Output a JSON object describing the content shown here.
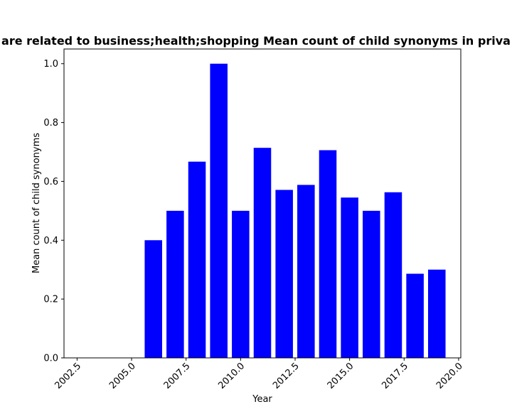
{
  "chart_data": {
    "type": "bar",
    "title": "are related to business;health;shopping Mean count of child synonyms in priva",
    "xlabel": "Year",
    "ylabel": "Mean count of child synonyms",
    "x": [
      2006,
      2007,
      2008,
      2009,
      2010,
      2011,
      2012,
      2013,
      2014,
      2015,
      2016,
      2017,
      2018,
      2019
    ],
    "values": [
      0.4,
      0.5,
      0.667,
      1.0,
      0.5,
      0.714,
      0.571,
      0.588,
      0.706,
      0.545,
      0.5,
      0.563,
      0.286,
      0.3
    ],
    "xlim": [
      2001.9,
      2020.1
    ],
    "ylim": [
      0,
      1.05
    ],
    "xticks": [
      "2002.5",
      "2005.0",
      "2007.5",
      "2010.0",
      "2012.5",
      "2015.0",
      "2017.5",
      "2020.0"
    ],
    "yticks": [
      "0.0",
      "0.2",
      "0.4",
      "0.6",
      "0.8",
      "1.0"
    ],
    "bar_color": "#0000ff",
    "grid": false,
    "legend": "none"
  }
}
